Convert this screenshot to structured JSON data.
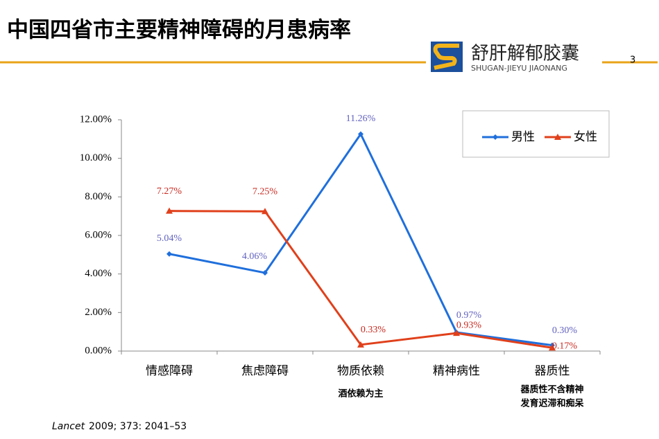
{
  "slide": {
    "title": "中国四省市主要精神障碍的月患病率",
    "page_number": "3",
    "logo": {
      "name": "舒肝解郁胶囊",
      "subtitle": "SHUGAN-JIEYU JIAONANG"
    },
    "citation": {
      "journal": "Lancet",
      "detail": "2009; 373: 2041–53"
    }
  },
  "chart_data": {
    "type": "line",
    "categories": [
      "情感障碍",
      "焦虑障碍",
      "物质依赖",
      "精神病性",
      "器质性"
    ],
    "series": [
      {
        "name": "男性",
        "color": "#1f6fdc",
        "values": [
          5.04,
          4.06,
          11.26,
          0.97,
          0.3
        ],
        "value_labels": [
          "5.04%",
          "4.06%",
          "11.26%",
          "0.97%",
          "0.30%"
        ]
      },
      {
        "name": "女性",
        "color": "#e0401b",
        "values": [
          7.27,
          7.25,
          0.33,
          0.93,
          0.17
        ],
        "value_labels": [
          "7.27%",
          "7.25%",
          "0.33%",
          "0.93%",
          "0.17%"
        ]
      }
    ],
    "ylim": [
      0,
      12
    ],
    "yticks": [
      {
        "value": 0,
        "label": "0.00%"
      },
      {
        "value": 2,
        "label": "2.00%"
      },
      {
        "value": 4,
        "label": "4.00%"
      },
      {
        "value": 6,
        "label": "6.00%"
      },
      {
        "value": 8,
        "label": "8.00%"
      },
      {
        "value": 10,
        "label": "10.00%"
      },
      {
        "value": 12,
        "label": "12.00%"
      }
    ],
    "legend": "upper right",
    "annotations": [
      "酒依赖为主",
      "器质性不含精神",
      "发育迟滞和痴呆"
    ]
  }
}
